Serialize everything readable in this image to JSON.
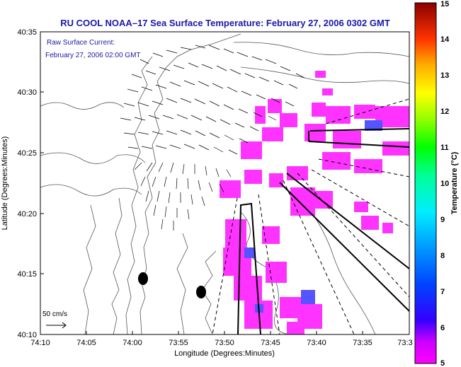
{
  "title": "RU COOL  NOAA–17  Sea Surface Temperature:  February 27, 2006 0302 GMT",
  "legend": {
    "line1": "Raw Surface Current:",
    "line2": "February 27, 2006 02:00 GMT"
  },
  "scale_label": "50 cm/s",
  "x_axis": {
    "label": "Longitude (Degrees:Minutes)",
    "ticks": [
      "74:10",
      "74:05",
      "74:00",
      "73:55",
      "73:50",
      "73:45",
      "73:40",
      "73:35",
      "73:3"
    ]
  },
  "y_axis": {
    "label": "Latitude (Degrees:Minutes)",
    "ticks": [
      "40:35",
      "40:30",
      "40:25",
      "40:20",
      "40:15",
      "40:10"
    ]
  },
  "colorbar": {
    "label": "Temperature (°C)",
    "ticks": [
      "15",
      "14",
      "13",
      "12",
      "11",
      "10",
      "9",
      "8",
      "7",
      "6",
      "5"
    ],
    "colors": [
      "#ff00ff",
      "#7700cc",
      "#0000ff",
      "#0099ff",
      "#00ffff",
      "#00ff88",
      "#00ff00",
      "#aaff00",
      "#ffff00",
      "#ff9900",
      "#ff0000",
      "#880000"
    ]
  },
  "colors": {
    "sst_patch": "#ff33ff",
    "sst_cool": "#5555ff",
    "title": "#1a1aa8"
  }
}
